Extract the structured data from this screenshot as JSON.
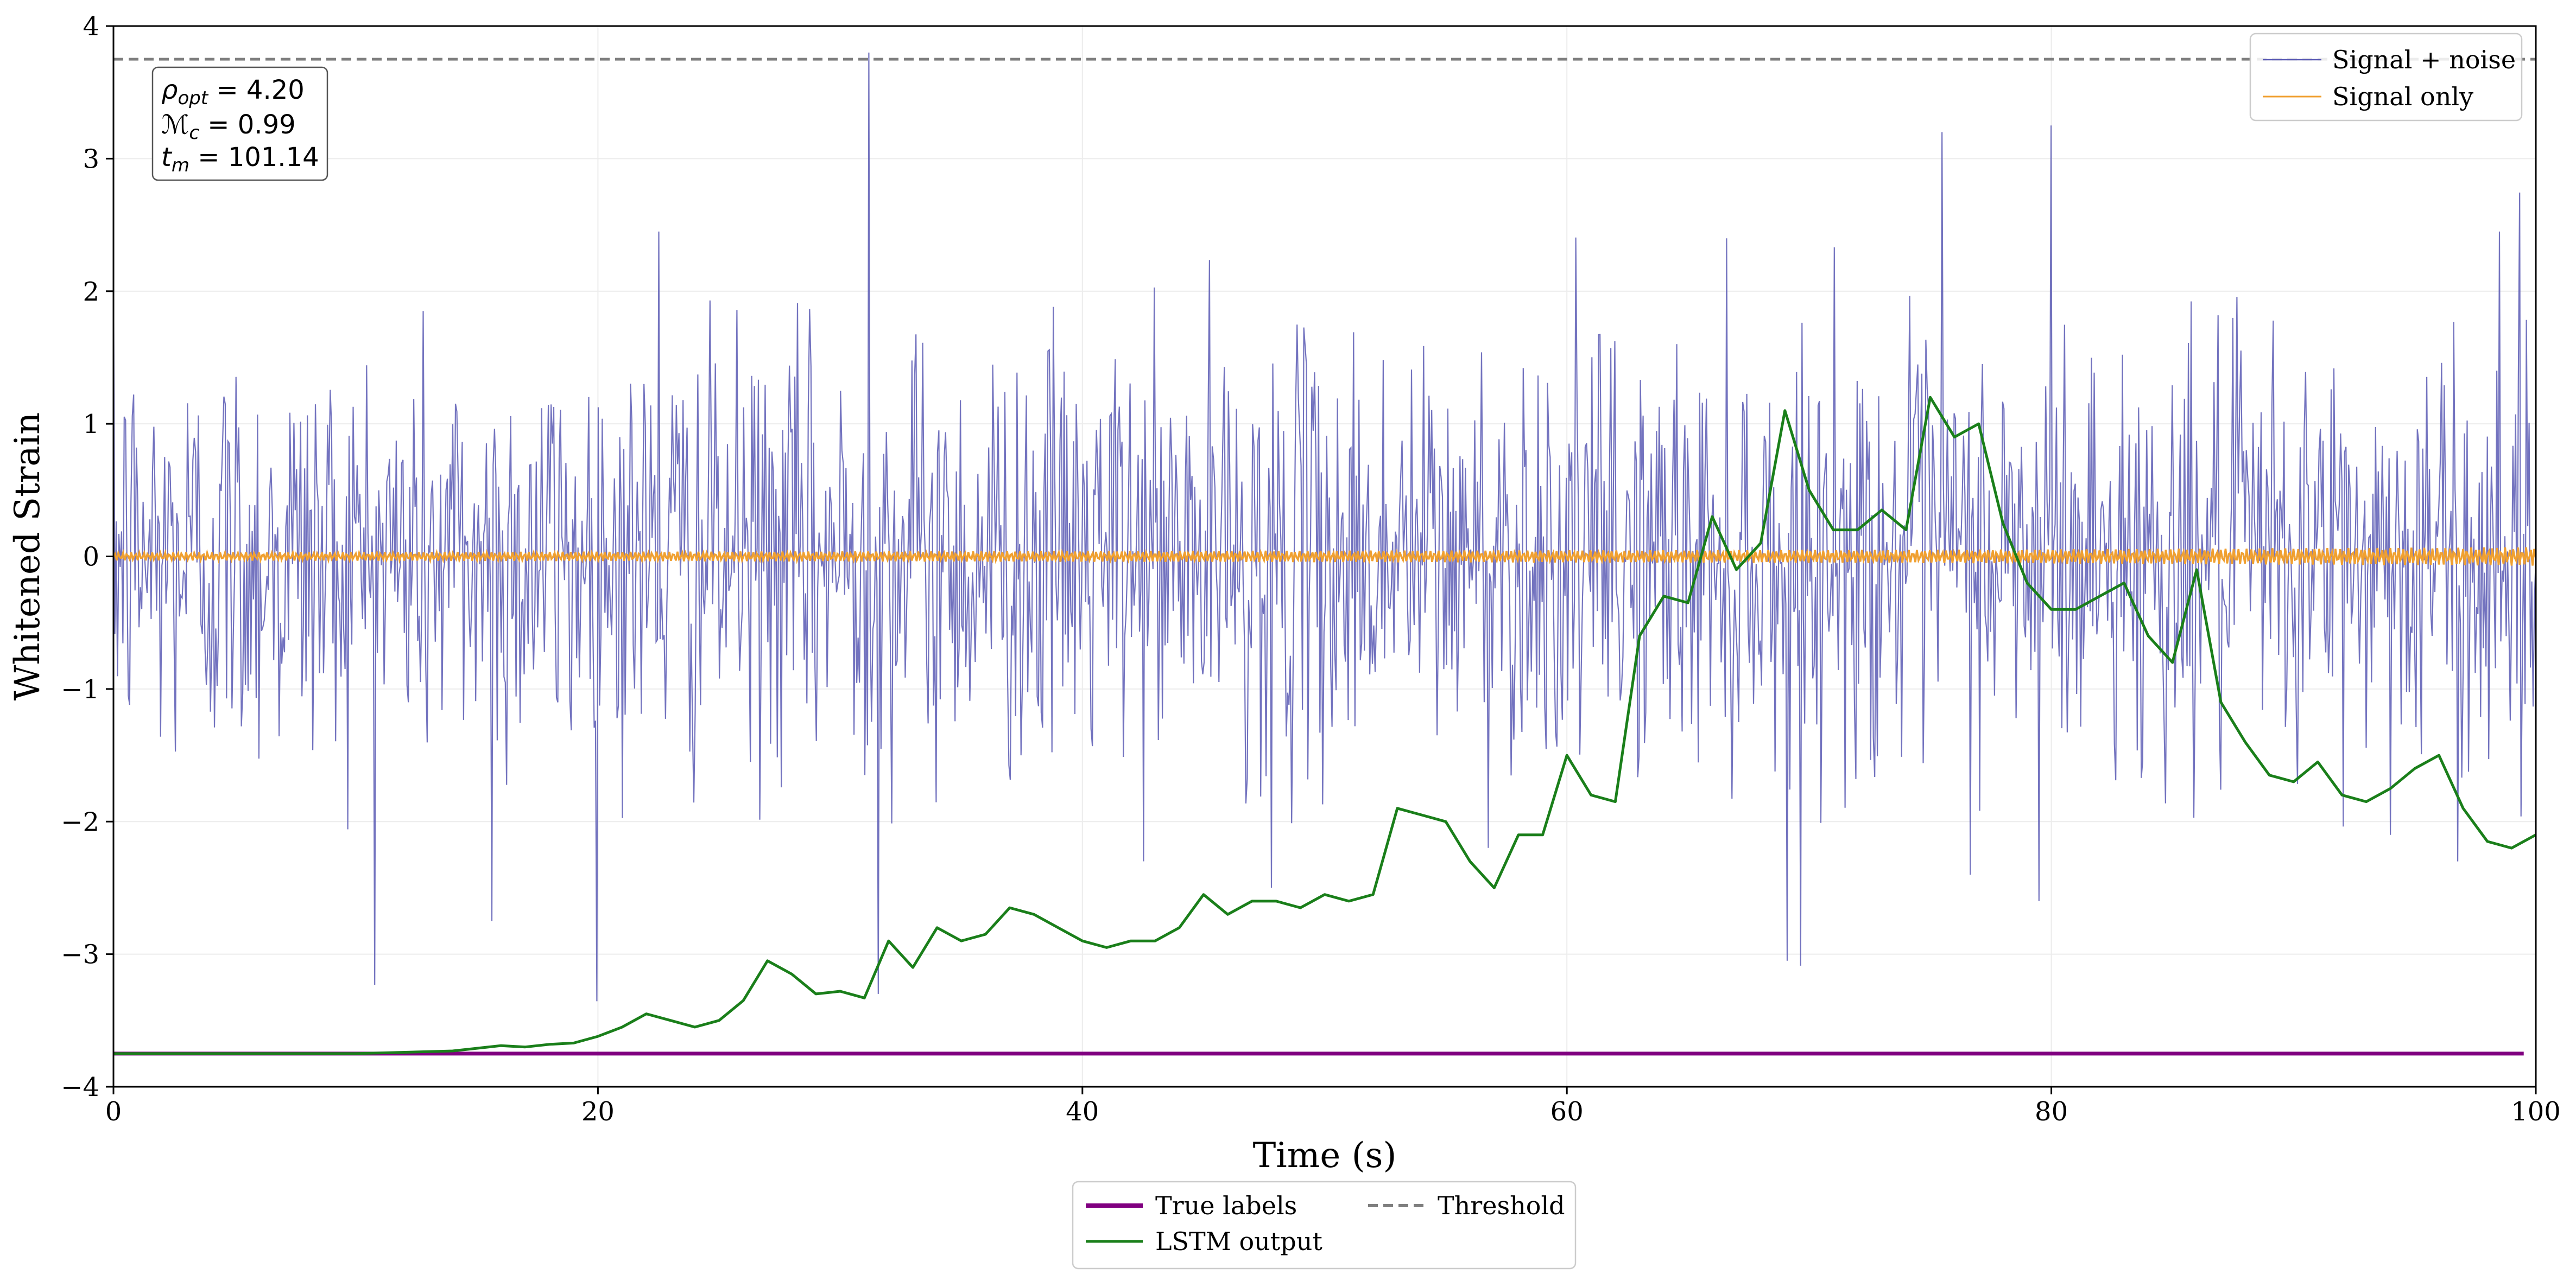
{
  "chart_data": {
    "type": "line",
    "xlabel": "Time (s)",
    "ylabel": "Whitened Strain",
    "xlim": [
      0,
      100
    ],
    "ylim": [
      -4,
      4
    ],
    "xticks": [
      0,
      20,
      40,
      60,
      80,
      100
    ],
    "yticks": [
      -4,
      -3,
      -2,
      -1,
      0,
      1,
      2,
      3,
      4
    ],
    "xtick_labels": [
      "0",
      "20",
      "40",
      "60",
      "80",
      "100"
    ],
    "ytick_labels": [
      "−4",
      "−3",
      "−2",
      "−1",
      "0",
      "1",
      "2",
      "3",
      "4"
    ],
    "grid": true,
    "annotation": {
      "rho_sym": "ρ",
      "rho_sub": "opt",
      "rho_value": " = 4.20",
      "mc_sym": "ℳ",
      "mc_sub": "c",
      "mc_value": " = 0.99",
      "tm_sym": "t",
      "tm_sub": "m",
      "tm_value": " = 101.14"
    },
    "series": [
      {
        "name": "Signal + noise",
        "color": "#5a5ab4",
        "kind": "noise",
        "n_points": 1800,
        "x_range": [
          0,
          100
        ],
        "std": 0.8,
        "outliers": [
          [
            31.2,
            3.8
          ],
          [
            31.6,
            -3.3
          ],
          [
            69.1,
            -3.05
          ],
          [
            75.5,
            3.2
          ],
          [
            80.0,
            3.25
          ],
          [
            79.5,
            -2.6
          ],
          [
            15.6,
            -2.75
          ],
          [
            22.5,
            2.45
          ],
          [
            47.8,
            -2.5
          ],
          [
            96.8,
            -2.3
          ],
          [
            98.5,
            2.45
          ]
        ]
      },
      {
        "name": "Signal only",
        "color": "#f0a030",
        "kind": "chirp",
        "n_points": 1500,
        "x_range": [
          0,
          100
        ],
        "amp": [
          0.03,
          0.05,
          0.07
        ],
        "pos": [
          0,
          75,
          100
        ]
      },
      {
        "name": "LSTM output",
        "color": "#1a7f1a",
        "kind": "line",
        "x": [
          0,
          5,
          10,
          12,
          14,
          15,
          16,
          17,
          18,
          19,
          20,
          21,
          22,
          23,
          24,
          25,
          26,
          27,
          28,
          29,
          30,
          31,
          32,
          33,
          34,
          35,
          36,
          37,
          38,
          39,
          40,
          41,
          42,
          43,
          44,
          45,
          46,
          47,
          48,
          49,
          50,
          51,
          52,
          53,
          54,
          55,
          56,
          57,
          58,
          59,
          60,
          61,
          62,
          63,
          64,
          65,
          66,
          67,
          68,
          69,
          70,
          71,
          72,
          73,
          74,
          75,
          76,
          77,
          78,
          79,
          80,
          81,
          82,
          83,
          84,
          85,
          86,
          87,
          88,
          89,
          90,
          91,
          92,
          93,
          94,
          95,
          96,
          97,
          98,
          99,
          100
        ],
        "y": [
          -3.75,
          -3.75,
          -3.75,
          -3.74,
          -3.73,
          -3.71,
          -3.69,
          -3.7,
          -3.68,
          -3.67,
          -3.62,
          -3.55,
          -3.45,
          -3.5,
          -3.55,
          -3.5,
          -3.35,
          -3.05,
          -3.15,
          -3.3,
          -3.28,
          -3.33,
          -2.9,
          -3.1,
          -2.8,
          -2.9,
          -2.85,
          -2.65,
          -2.7,
          -2.8,
          -2.9,
          -2.95,
          -2.9,
          -2.9,
          -2.8,
          -2.55,
          -2.7,
          -2.6,
          -2.6,
          -2.65,
          -2.55,
          -2.6,
          -2.55,
          -1.9,
          -1.95,
          -2.0,
          -2.3,
          -2.5,
          -2.1,
          -2.1,
          -1.5,
          -1.8,
          -1.85,
          -0.6,
          -0.3,
          -0.35,
          0.3,
          -0.1,
          0.1,
          1.1,
          0.5,
          0.2,
          0.2,
          0.35,
          0.2,
          1.2,
          0.9,
          1.0,
          0.25,
          -0.2,
          -0.4,
          -0.4,
          -0.3,
          -0.2,
          -0.6,
          -0.8,
          -0.1,
          -1.1,
          -1.4,
          -1.65,
          -1.7,
          -1.55,
          -1.8,
          -1.85,
          -1.75,
          -1.6,
          -1.5,
          -1.9,
          -2.15,
          -2.2,
          -2.1
        ]
      },
      {
        "name": "True labels",
        "color": "#800080",
        "kind": "line",
        "x": [
          0,
          99.5
        ],
        "y": [
          -3.75,
          -3.75
        ]
      },
      {
        "name": "Threshold",
        "color": "#7f7f7f",
        "kind": "hline",
        "y": 3.75
      }
    ],
    "legend_upper": [
      "Signal + noise",
      "Signal only"
    ],
    "legend_lower": [
      "True labels",
      "LSTM output",
      "Threshold"
    ]
  }
}
